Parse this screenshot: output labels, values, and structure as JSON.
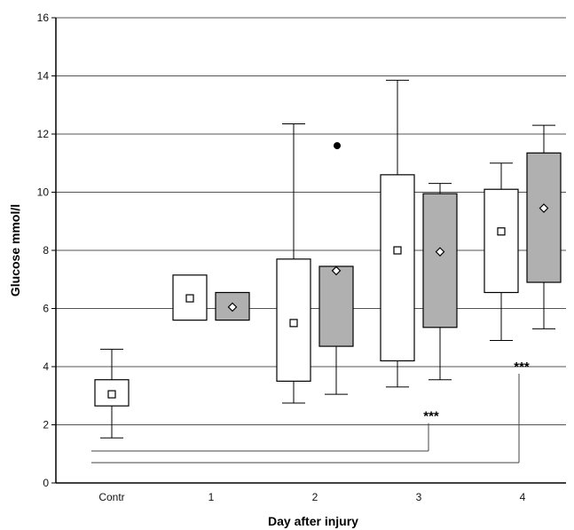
{
  "chart_data": {
    "type": "box",
    "xlabel": "Day after injury",
    "ylabel": "Glucose mmol/l",
    "ylim": [
      0,
      16
    ],
    "yticks": [
      0,
      2,
      4,
      6,
      8,
      10,
      12,
      14,
      16
    ],
    "categories": [
      "Contr",
      "1",
      "2",
      "3",
      "4"
    ],
    "grid": "horizontal",
    "series": [
      {
        "fill": "#ffffff",
        "mean_marker": "square",
        "boxes": [
          {
            "category": "Contr",
            "whisker_low": 1.55,
            "q1": 2.65,
            "q3": 3.55,
            "whisker_high": 4.6,
            "mean": 3.05
          },
          {
            "category": "1",
            "whisker_low": null,
            "q1": 5.6,
            "q3": 7.15,
            "whisker_high": null,
            "mean": 6.35
          },
          {
            "category": "2",
            "whisker_low": 2.75,
            "q1": 3.5,
            "q3": 7.7,
            "whisker_high": 12.35,
            "mean": 5.5
          },
          {
            "category": "3",
            "whisker_low": 3.3,
            "q1": 4.2,
            "q3": 10.6,
            "whisker_high": 13.85,
            "mean": 8.0
          },
          {
            "category": "4",
            "whisker_low": 4.9,
            "q1": 6.55,
            "q3": 10.1,
            "whisker_high": 11.0,
            "mean": 8.65
          }
        ]
      },
      {
        "fill": "#b0b0b0",
        "mean_marker": "diamond",
        "boxes": [
          {
            "category": "1",
            "whisker_low": null,
            "q1": 5.6,
            "q3": 6.55,
            "whisker_high": null,
            "mean": 6.05
          },
          {
            "category": "2",
            "whisker_low": 3.05,
            "q1": 4.7,
            "q3": 7.45,
            "whisker_high": null,
            "mean": 7.3,
            "outlier": 11.6
          },
          {
            "category": "3",
            "whisker_low": 3.55,
            "q1": 5.35,
            "q3": 9.95,
            "whisker_high": 10.3,
            "mean": 7.95
          },
          {
            "category": "4",
            "whisker_low": 5.3,
            "q1": 6.9,
            "q3": 11.35,
            "whisker_high": 12.3,
            "mean": 9.45
          }
        ]
      }
    ],
    "significance": [
      {
        "label": "***",
        "from": "Contr",
        "to": "3",
        "bracket_y": 1.1,
        "label_y": 2.3
      },
      {
        "label": "***",
        "from": "Contr",
        "to": "4",
        "bracket_y": 0.7,
        "label_y": 4.0
      }
    ]
  }
}
